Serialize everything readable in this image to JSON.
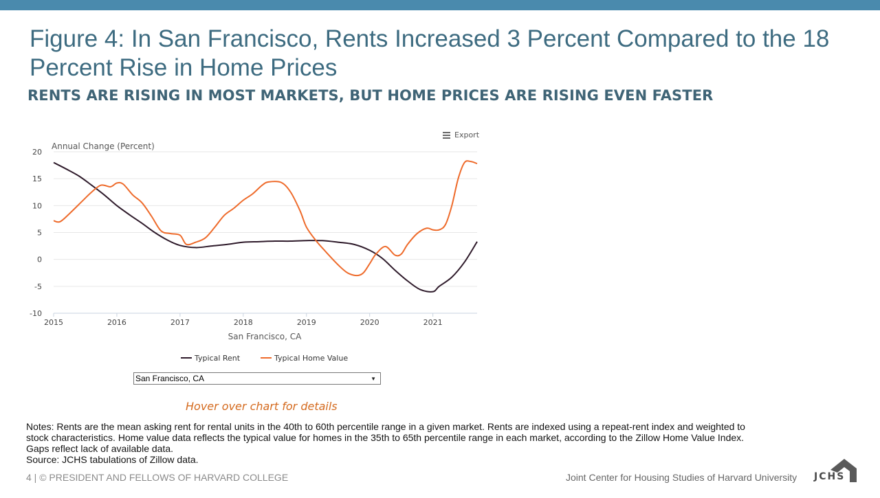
{
  "slide": {
    "title": "Figure 4: In San Francisco, Rents Increased 3 Percent Compared to the 18 Percent Rise in Home Prices",
    "subtitle": "RENTS ARE RISING IN MOST MARKETS, BUT HOME PRICES ARE RISING EVEN FASTER",
    "export_label": "Export",
    "select_value": "San Francisco, CA",
    "hover_note": "Hover over chart for details",
    "notes": [
      "Notes: Rents are the mean asking rent for rental units in the 40th to 60th percentile range in a given market. Rents are indexed using a repeat-rent index and weighted to",
      "stock characteristics. Home value data reflects the typical value for homes in the 35th to 65th percentile range in each market, according to the Zillow Home Value Index.",
      "Gaps reflect lack of available data.",
      "Source: JCHS tabulations of Zillow data."
    ],
    "footer_left": "4 | © PRESIDENT AND FELLOWS OF HARVARD COLLEGE",
    "footer_right": "Joint Center for Housing Studies of Harvard University",
    "logo_text": "JCHS"
  },
  "colors": {
    "rent": "#2e1a2a",
    "home": "#ee6a2a",
    "accent": "#4a8aad",
    "title": "#3d6b80"
  },
  "chart_data": {
    "type": "line",
    "title": "",
    "ylabel": "Annual Change (Percent)",
    "xlabel": "San Francisco, CA",
    "xlim": [
      2015,
      2021.7
    ],
    "ylim": [
      -10,
      20
    ],
    "yticks": [
      -10,
      -5,
      0,
      5,
      10,
      15,
      20
    ],
    "xticks": [
      2015,
      2016,
      2017,
      2018,
      2019,
      2020,
      2021
    ],
    "legend_position": "bottom-center",
    "series": [
      {
        "name": "Typical Rent",
        "color_key": "rent",
        "x": [
          2015.0,
          2015.2,
          2015.4,
          2015.6,
          2015.8,
          2016.0,
          2016.2,
          2016.4,
          2016.6,
          2016.8,
          2017.0,
          2017.25,
          2017.5,
          2017.75,
          2018.0,
          2018.25,
          2018.5,
          2018.75,
          2019.0,
          2019.25,
          2019.5,
          2019.75,
          2020.0,
          2020.2,
          2020.4,
          2020.6,
          2020.8,
          2021.0,
          2021.1,
          2021.3,
          2021.5,
          2021.7
        ],
        "y": [
          18.0,
          16.8,
          15.5,
          13.8,
          12.0,
          10.0,
          8.3,
          6.7,
          5.0,
          3.6,
          2.6,
          2.2,
          2.5,
          2.8,
          3.2,
          3.3,
          3.4,
          3.4,
          3.5,
          3.5,
          3.2,
          2.8,
          1.7,
          0.2,
          -2.0,
          -4.0,
          -5.6,
          -6.0,
          -5.0,
          -3.3,
          -0.5,
          3.3
        ]
      },
      {
        "name": "Typical Home Value",
        "color_key": "home",
        "x": [
          2015.0,
          2015.1,
          2015.25,
          2015.45,
          2015.6,
          2015.75,
          2015.9,
          2016.0,
          2016.1,
          2016.25,
          2016.4,
          2016.55,
          2016.7,
          2016.85,
          2017.0,
          2017.1,
          2017.25,
          2017.4,
          2017.55,
          2017.7,
          2017.85,
          2018.0,
          2018.15,
          2018.3,
          2018.4,
          2018.6,
          2018.75,
          2018.9,
          2019.0,
          2019.15,
          2019.3,
          2019.5,
          2019.65,
          2019.8,
          2019.9,
          2020.0,
          2020.1,
          2020.25,
          2020.4,
          2020.5,
          2020.6,
          2020.75,
          2020.9,
          2021.0,
          2021.1,
          2021.2,
          2021.3,
          2021.4,
          2021.5,
          2021.6,
          2021.7
        ],
        "y": [
          7.2,
          7.0,
          8.5,
          10.8,
          12.5,
          13.8,
          13.5,
          14.2,
          14.0,
          12.0,
          10.5,
          8.0,
          5.3,
          4.8,
          4.5,
          2.8,
          3.2,
          4.0,
          6.0,
          8.2,
          9.5,
          11.0,
          12.2,
          13.8,
          14.4,
          14.3,
          12.5,
          9.0,
          6.0,
          3.5,
          1.5,
          -1.0,
          -2.5,
          -3.0,
          -2.5,
          -0.8,
          1.0,
          2.4,
          0.8,
          1.0,
          2.8,
          4.8,
          5.8,
          5.5,
          5.5,
          6.5,
          10.0,
          15.0,
          18.0,
          18.2,
          17.8
        ]
      }
    ]
  }
}
